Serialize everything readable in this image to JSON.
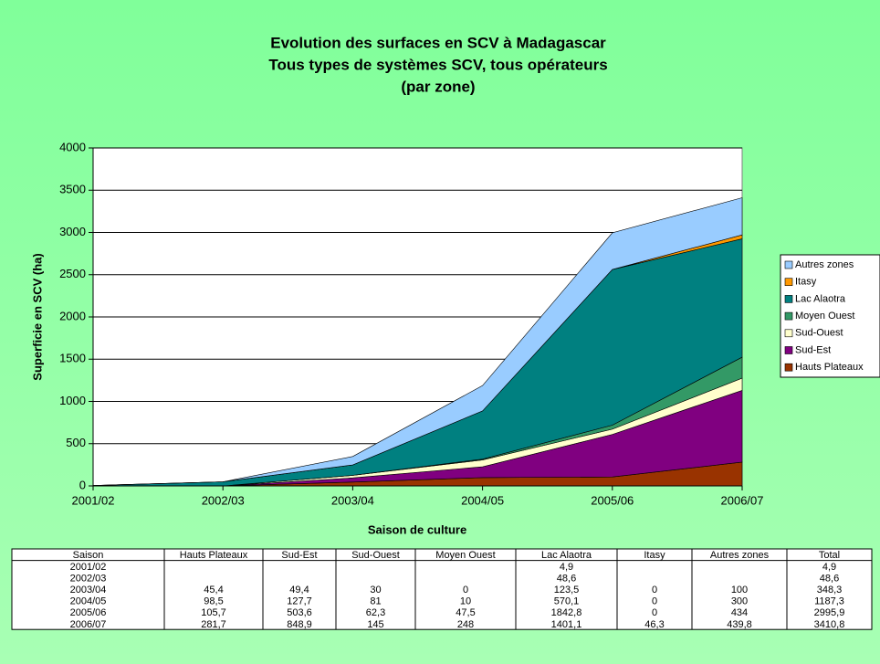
{
  "chart_data": {
    "type": "stacked_area",
    "title": [
      "Evolution des surfaces en SCV à Madagascar",
      "Tous types de systèmes SCV, tous opérateurs",
      "(par zone)"
    ],
    "x_label": "Saison de culture",
    "y_label": "Superficie en SCV (ha)",
    "categories": [
      "2001/02",
      "2002/03",
      "2003/04",
      "2004/05",
      "2005/06",
      "2006/07"
    ],
    "series": [
      {
        "name": "Hauts Plateaux",
        "color": "#993300",
        "values": [
          0,
          0,
          45.4,
          98.5,
          105.7,
          281.7
        ]
      },
      {
        "name": "Sud-Est",
        "color": "#800080",
        "values": [
          0,
          0,
          49.4,
          127.7,
          503.6,
          848.9
        ]
      },
      {
        "name": "Sud-Ouest",
        "color": "#ffffcc",
        "values": [
          0,
          0,
          30,
          81,
          62.3,
          145
        ]
      },
      {
        "name": "Moyen Ouest",
        "color": "#339966",
        "values": [
          0,
          0,
          0,
          10,
          47.5,
          248
        ]
      },
      {
        "name": "Lac Alaotra",
        "color": "#008080",
        "values": [
          4.9,
          48.6,
          123.5,
          570.1,
          1842.8,
          1401.1
        ]
      },
      {
        "name": "Itasy",
        "color": "#ff9900",
        "values": [
          0,
          0,
          0,
          0,
          0,
          46.3
        ]
      },
      {
        "name": "Autres zones",
        "color": "#99ccff",
        "values": [
          0,
          0,
          100,
          300,
          434,
          439.8
        ]
      }
    ],
    "ylim": [
      0,
      4000
    ],
    "yticks": [
      0,
      500,
      1000,
      1500,
      2000,
      2500,
      3000,
      3500,
      4000
    ],
    "grid": true,
    "legend": "right"
  },
  "table": {
    "header": [
      "Saison",
      "Hauts Plateaux",
      "Sud-Est",
      "Sud-Ouest",
      "Moyen Ouest",
      "Lac Alaotra",
      "Itasy",
      "Autres zones",
      "Total"
    ],
    "rows": [
      [
        "2001/02",
        null,
        null,
        null,
        null,
        "4,9",
        null,
        null,
        "4,9"
      ],
      [
        "2002/03",
        null,
        null,
        null,
        null,
        "48,6",
        null,
        null,
        "48,6"
      ],
      [
        "2003/04",
        "45,4",
        "49,4",
        "30",
        "0",
        "123,5",
        "0",
        "100",
        "348,3"
      ],
      [
        "2004/05",
        "98,5",
        "127,7",
        "81",
        "10",
        "570,1",
        "0",
        "300",
        "1187,3"
      ],
      [
        "2005/06",
        "105,7",
        "503,6",
        "62,3",
        "47,5",
        "1842,8",
        "0",
        "434",
        "2995,9"
      ],
      [
        "2006/07",
        "281,7",
        "848,9",
        "145",
        "248",
        "1401,1",
        "46,3",
        "439,8",
        "3410,8"
      ]
    ]
  }
}
